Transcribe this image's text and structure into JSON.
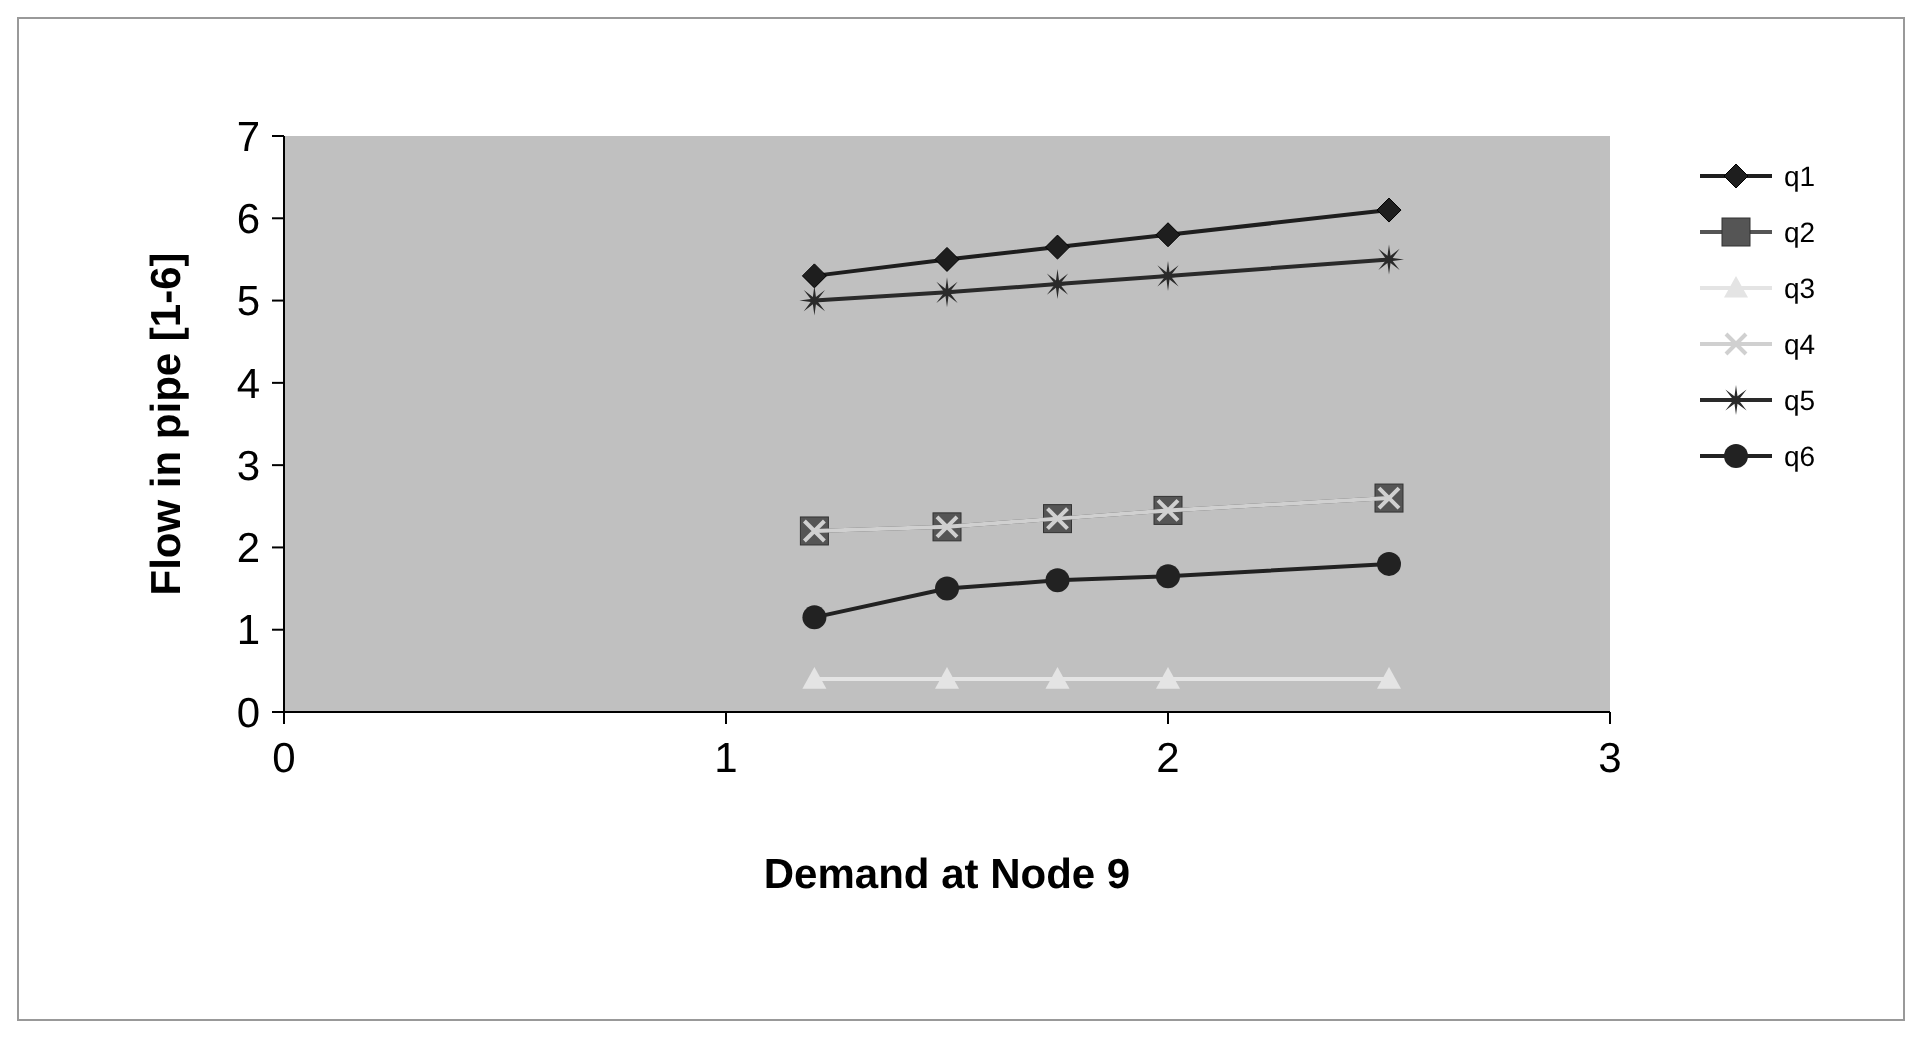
{
  "chart_data": {
    "type": "line",
    "xlabel": "Demand at Node 9",
    "ylabel": "Flow in pipe [1-6]",
    "x": [
      1.2,
      1.5,
      1.75,
      2,
      2.5
    ],
    "xlim": [
      0,
      3
    ],
    "xticks": [
      0,
      1,
      2,
      3
    ],
    "ylim": [
      0,
      7
    ],
    "yticks": [
      0,
      1,
      2,
      3,
      4,
      5,
      6,
      7
    ],
    "grid": false,
    "legend": "right",
    "series": [
      {
        "name": "q1",
        "color": "#1e1e1e",
        "marker": "diamond",
        "values": [
          5.3,
          5.5,
          5.65,
          5.8,
          6.1
        ]
      },
      {
        "name": "q2",
        "color": "#555555",
        "marker": "square",
        "values": [
          2.2,
          2.25,
          2.35,
          2.45,
          2.6
        ]
      },
      {
        "name": "q3",
        "color": "#e4e4e4",
        "marker": "triangle",
        "values": [
          0.4,
          0.4,
          0.4,
          0.4,
          0.4
        ]
      },
      {
        "name": "q4",
        "color": "#d0d0d0",
        "marker": "cross",
        "values": [
          2.2,
          2.25,
          2.35,
          2.45,
          2.6
        ]
      },
      {
        "name": "q5",
        "color": "#2a2a2a",
        "marker": "star",
        "values": [
          5.0,
          5.1,
          5.2,
          5.3,
          5.5
        ]
      },
      {
        "name": "q6",
        "color": "#222222",
        "marker": "circle",
        "values": [
          1.15,
          1.5,
          1.6,
          1.65,
          1.8
        ]
      }
    ]
  }
}
